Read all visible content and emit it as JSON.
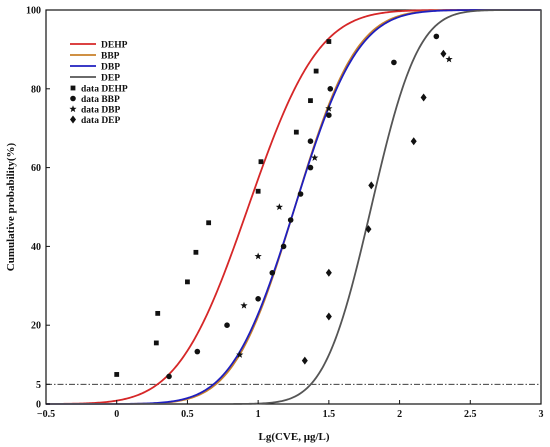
{
  "chart_data": {
    "type": "scatter",
    "xlabel": "Lg(CVE, μg/L)",
    "ylabel": "Cumulative probability(%)",
    "xlim": [
      -0.5,
      3
    ],
    "ylim": [
      0,
      100
    ],
    "xticks": [
      "−0.5",
      "0",
      "0.5",
      "1",
      "1.5",
      "2",
      "2.5",
      "3"
    ],
    "xtick_values": [
      -0.5,
      0,
      0.5,
      1,
      1.5,
      2,
      2.5,
      3
    ],
    "yticks": [
      "0",
      "5",
      "20",
      "40",
      "60",
      "80",
      "100"
    ],
    "ytick_values": [
      0,
      5,
      20,
      40,
      60,
      80,
      100
    ],
    "reference_line": {
      "y": 5,
      "style": "dash-dot"
    },
    "legend_position": "upper-left",
    "fitted_curves": [
      {
        "name": "DEHP",
        "color": "#d62728",
        "mean": 0.93,
        "sd": 0.39
      },
      {
        "name": "BBP",
        "color": "#c8802a",
        "mean": 1.26,
        "sd": 0.34
      },
      {
        "name": "DBP",
        "color": "#1f1fbf",
        "mean": 1.26,
        "sd": 0.35
      },
      {
        "name": "DEP",
        "color": "#555555",
        "mean": 1.8,
        "sd": 0.26
      }
    ],
    "series": [
      {
        "name": "data DEHP",
        "marker": "square",
        "points": [
          [
            0.0,
            7.5
          ],
          [
            0.28,
            15.5
          ],
          [
            0.29,
            23
          ],
          [
            0.5,
            31
          ],
          [
            0.56,
            38.5
          ],
          [
            0.65,
            46
          ],
          [
            1.0,
            54
          ],
          [
            1.02,
            61.5
          ],
          [
            1.27,
            69
          ],
          [
            1.37,
            77
          ],
          [
            1.41,
            84.5
          ],
          [
            1.5,
            92
          ]
        ]
      },
      {
        "name": "data BBP",
        "marker": "circle",
        "points": [
          [
            0.37,
            7
          ],
          [
            0.57,
            13.3
          ],
          [
            0.78,
            20
          ],
          [
            1.0,
            26.7
          ],
          [
            1.1,
            33.3
          ],
          [
            1.18,
            40
          ],
          [
            1.23,
            46.7
          ],
          [
            1.3,
            53.3
          ],
          [
            1.37,
            60
          ],
          [
            1.37,
            66.7
          ],
          [
            1.5,
            73.3
          ],
          [
            1.51,
            80
          ],
          [
            1.96,
            86.7
          ],
          [
            2.26,
            93.3
          ]
        ]
      },
      {
        "name": "data DBP",
        "marker": "star",
        "points": [
          [
            0.87,
            12.5
          ],
          [
            0.9,
            25
          ],
          [
            1.0,
            37.5
          ],
          [
            1.15,
            50
          ],
          [
            1.4,
            62.5
          ],
          [
            1.5,
            75
          ],
          [
            2.35,
            87.5
          ]
        ]
      },
      {
        "name": "data DEP",
        "marker": "diamond",
        "points": [
          [
            1.33,
            11
          ],
          [
            1.5,
            22.2
          ],
          [
            1.5,
            33.3
          ],
          [
            1.78,
            44.4
          ],
          [
            1.8,
            55.5
          ],
          [
            2.1,
            66.7
          ],
          [
            2.17,
            77.8
          ],
          [
            2.31,
            88.9
          ]
        ]
      }
    ]
  }
}
